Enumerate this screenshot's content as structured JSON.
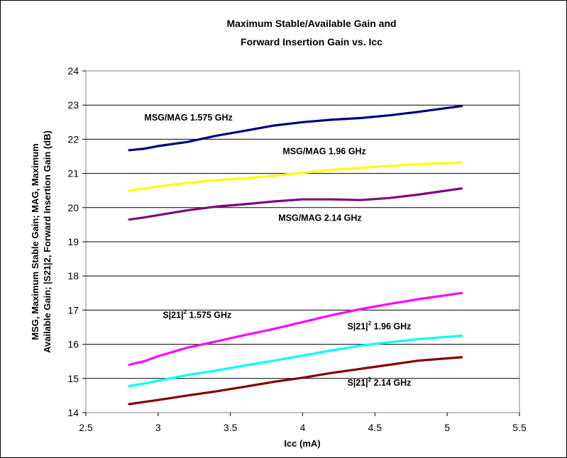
{
  "chart_data": {
    "type": "line",
    "title_lines": [
      "Maximum Stable/Available Gain and",
      "Forward Insertion Gain vs. Icc"
    ],
    "xlabel": "Icc (mA)",
    "ylabel_lines": [
      "MSG, Maximum Stable Gain; MAG, Maximum",
      "Available Gain; |S21|2, Forward Insertion Gain (dB)"
    ],
    "xlim": [
      2.5,
      5.5
    ],
    "ylim": [
      14,
      24
    ],
    "xticks": [
      "2.5",
      "3",
      "3.5",
      "4",
      "4.5",
      "5",
      "5.5"
    ],
    "yticks": [
      "14",
      "15",
      "16",
      "17",
      "18",
      "19",
      "20",
      "21",
      "22",
      "23",
      "24"
    ],
    "grid": "horizontal",
    "x": [
      2.8,
      2.9,
      3.0,
      3.2,
      3.4,
      3.6,
      3.8,
      4.0,
      4.2,
      4.4,
      4.6,
      4.8,
      5.1
    ],
    "series": [
      {
        "name": "MSG/MAG 1.575 GHz",
        "color": "#000080",
        "values": [
          21.68,
          21.72,
          21.8,
          21.92,
          22.1,
          22.25,
          22.4,
          22.5,
          22.57,
          22.62,
          22.7,
          22.8,
          22.97
        ]
      },
      {
        "name": "MSG/MAG 1.96 GHz",
        "color": "#ffff00",
        "values": [
          20.5,
          20.55,
          20.62,
          20.72,
          20.8,
          20.86,
          20.93,
          21.02,
          21.1,
          21.16,
          21.22,
          21.27,
          21.32
        ]
      },
      {
        "name": "MSG/MAG 2.14 GHz",
        "color": "#800080",
        "values": [
          19.65,
          19.71,
          19.78,
          19.92,
          20.03,
          20.1,
          20.18,
          20.24,
          20.24,
          20.22,
          20.28,
          20.38,
          20.56
        ]
      },
      {
        "name": "S|21|² 1.575 GHz",
        "color": "#ff00ff",
        "values": [
          15.4,
          15.5,
          15.65,
          15.9,
          16.08,
          16.27,
          16.45,
          16.65,
          16.85,
          17.03,
          17.18,
          17.32,
          17.5
        ]
      },
      {
        "name": "S|21|² 1.96 GHz",
        "color": "#00ffff",
        "values": [
          14.78,
          14.85,
          14.93,
          15.1,
          15.23,
          15.38,
          15.52,
          15.67,
          15.82,
          15.96,
          16.06,
          16.15,
          16.25
        ]
      },
      {
        "name": "S|21|² 2.14 GHz",
        "color": "#800000",
        "values": [
          14.25,
          14.31,
          14.37,
          14.5,
          14.62,
          14.76,
          14.9,
          15.02,
          15.16,
          15.28,
          15.4,
          15.52,
          15.62
        ]
      }
    ],
    "annotations": [
      {
        "text": "MSG/MAG 1.575 GHz",
        "x": 3.21,
        "y": 22.55
      },
      {
        "text": "MSG/MAG 1.96 GHz",
        "x": 4.15,
        "y": 21.56
      },
      {
        "text": "MSG/MAG 2.14 GHz",
        "x": 4.12,
        "y": 19.61
      },
      {
        "base": "S|21|",
        "sup": "2",
        "rest": " 1.575 GHz",
        "x": 3.27,
        "y": 16.77
      },
      {
        "base": "S|21|",
        "sup": "2",
        "rest": " 1.96 GHz",
        "x": 4.53,
        "y": 16.44
      },
      {
        "base": "S|21|",
        "sup": "2",
        "rest": " 2.14 GHz",
        "x": 4.53,
        "y": 14.79
      }
    ]
  }
}
